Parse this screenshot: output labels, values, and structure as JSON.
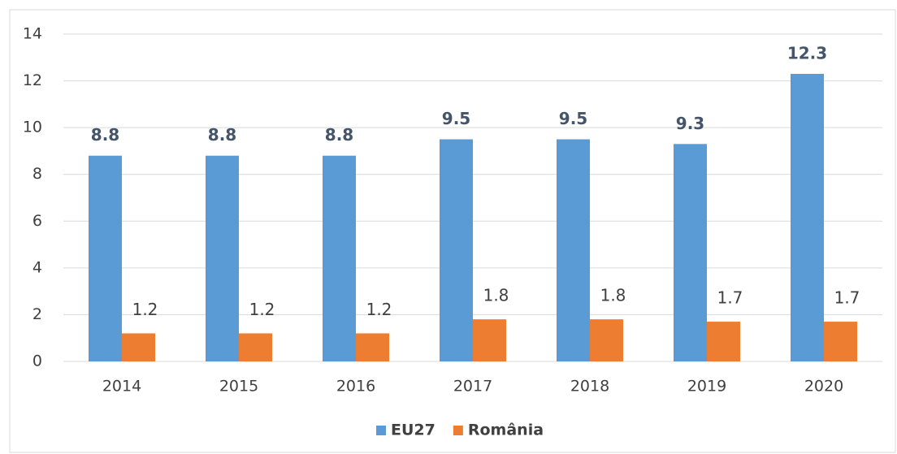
{
  "chart_data": {
    "type": "bar",
    "categories": [
      "2014",
      "2015",
      "2016",
      "2017",
      "2018",
      "2019",
      "2020"
    ],
    "series": [
      {
        "name": "EU27",
        "color": "#5b9bd5",
        "values": [
          8.8,
          8.8,
          8.8,
          9.5,
          9.5,
          9.3,
          12.3
        ]
      },
      {
        "name": "România",
        "color": "#ed7d31",
        "values": [
          1.2,
          1.2,
          1.2,
          1.8,
          1.8,
          1.7,
          1.7
        ]
      }
    ],
    "ylim": [
      0,
      14
    ],
    "yticks": [
      0,
      2,
      4,
      6,
      8,
      10,
      12,
      14
    ],
    "grid": true,
    "legend": "bottom"
  }
}
